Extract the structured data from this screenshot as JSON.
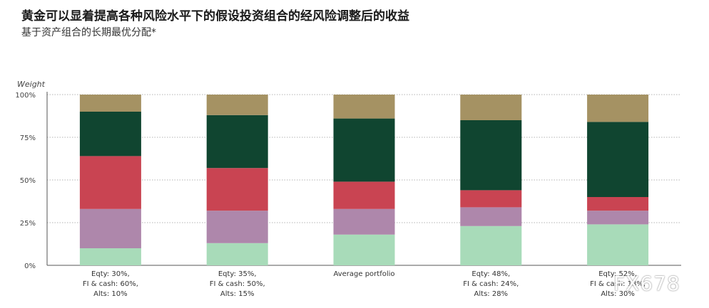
{
  "title": "黄金可以显着提高各种风险水平下的假设投资组合的经风险调整后的收益",
  "subtitle": "基于资产组合的长期最优分配*",
  "watermark": "FX678",
  "chart_data": {
    "type": "bar",
    "stacked": true,
    "ylabel": "Weight",
    "ylim": [
      0,
      100
    ],
    "yticks": [
      0,
      25,
      50,
      75,
      100
    ],
    "ytick_labels": [
      "0%",
      "25%",
      "50%",
      "75%",
      "100%"
    ],
    "grid": true,
    "categories": [
      [
        "Eqty: 30%,",
        "FI & cash: 60%,",
        "Alts: 10%"
      ],
      [
        "Eqty: 35%,",
        "FI & cash: 50%,",
        "Alts: 15%"
      ],
      [
        "Average portfolio"
      ],
      [
        "Eqty: 48%,",
        "FI & cash: 24%,",
        "Alts: 28%"
      ],
      [
        "Eqty: 52%,",
        "FI & cash: 18%,",
        "Alts: 30%"
      ]
    ],
    "series": [
      {
        "color": "#a8dbb9",
        "values": [
          10,
          13,
          18,
          23,
          24
        ]
      },
      {
        "color": "#ae87ab",
        "values": [
          23,
          19,
          15,
          11,
          8
        ]
      },
      {
        "color": "#c94452",
        "values": [
          31,
          25,
          16,
          10,
          8
        ]
      },
      {
        "color": "#104530",
        "values": [
          26,
          31,
          37,
          41,
          44
        ]
      },
      {
        "color": "#a59263",
        "values": [
          10,
          12,
          14,
          15,
          16
        ]
      }
    ]
  }
}
